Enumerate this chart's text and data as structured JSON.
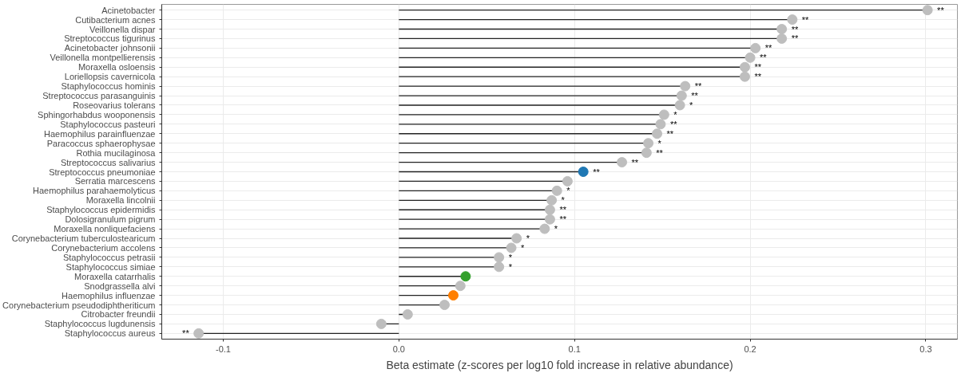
{
  "chart_data": {
    "type": "lollipop",
    "orientation": "horizontal",
    "xlabel": "Beta estimate (z-scores per log10 fold increase in relative abundance)",
    "categories": [
      "Acinetobacter",
      "Cutibacterium acnes",
      "Veillonella dispar",
      "Streptococcus tigurinus",
      "Acinetobacter johnsonii",
      "Veillonella montpellierensis",
      "Moraxella osloensis",
      "Loriellopsis cavernicola",
      "Staphylococcus hominis",
      "Streptococcus parasanguinis",
      "Roseovarius tolerans",
      "Sphingorhabdus wooponensis",
      "Staphylococcus pasteuri",
      "Haemophilus parainfluenzae",
      "Paracoccus sphaerophysae",
      "Rothia mucilaginosa",
      "Streptococcus salivarius",
      "Streptococcus pneumoniae",
      "Serratia marcescens",
      "Haemophilus parahaemolyticus",
      "Moraxella lincolnii",
      "Staphylococcus epidermidis",
      "Dolosigranulum pigrum",
      "Moraxella nonliquefaciens",
      "Corynebacterium tuberculostearicum",
      "Corynebacterium accolens",
      "Staphylococcus petrasii",
      "Staphylococcus simiae",
      "Moraxella catarrhalis",
      "Snodgrassella alvi",
      "Haemophilus influenzae",
      "Corynebacterium pseudodiphtheriticum",
      "Citrobacter freundii",
      "Staphylococcus lugdunensis",
      "Staphylococcus aureus"
    ],
    "values": [
      0.301,
      0.224,
      0.218,
      0.218,
      0.203,
      0.2,
      0.197,
      0.197,
      0.163,
      0.161,
      0.16,
      0.151,
      0.149,
      0.147,
      0.142,
      0.141,
      0.127,
      0.105,
      0.096,
      0.09,
      0.087,
      0.086,
      0.086,
      0.083,
      0.067,
      0.064,
      0.057,
      0.057,
      0.038,
      0.035,
      0.031,
      0.026,
      0.005,
      -0.01,
      -0.114
    ],
    "colors": [
      "#bebebe",
      "#bebebe",
      "#bebebe",
      "#bebebe",
      "#bebebe",
      "#bebebe",
      "#bebebe",
      "#bebebe",
      "#bebebe",
      "#bebebe",
      "#bebebe",
      "#bebebe",
      "#bebebe",
      "#bebebe",
      "#bebebe",
      "#bebebe",
      "#bebebe",
      "#1f78b4",
      "#bebebe",
      "#bebebe",
      "#bebebe",
      "#bebebe",
      "#bebebe",
      "#bebebe",
      "#bebebe",
      "#bebebe",
      "#bebebe",
      "#bebebe",
      "#33a02c",
      "#bebebe",
      "#ff7f00",
      "#bebebe",
      "#bebebe",
      "#bebebe",
      "#bebebe"
    ],
    "value_labels": [
      "**",
      "**",
      "**",
      "**",
      "**",
      "**",
      "**",
      "**",
      "**",
      "**",
      "*",
      "*",
      "**",
      "**",
      "*",
      "**",
      "**",
      "**",
      null,
      "*",
      "*",
      "**",
      "**",
      "*",
      "*",
      "*",
      "*",
      "*",
      null,
      null,
      null,
      null,
      null,
      null,
      "**"
    ],
    "xlim": [
      -0.135,
      0.318
    ],
    "xticks": [
      {
        "value": -0.1,
        "label": "-0.1"
      },
      {
        "value": 0,
        "label": "0.0"
      },
      0.1,
      0.2,
      0.3
    ],
    "grid": true,
    "marker": "circle"
  }
}
